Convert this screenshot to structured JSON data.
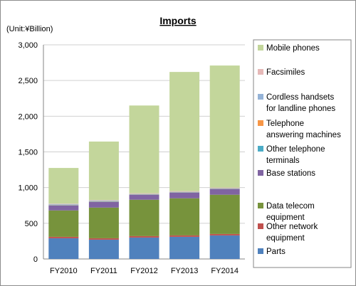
{
  "chart_data": {
    "type": "bar",
    "stacked": true,
    "title": "Imports",
    "unit_label": "(Unit:¥Billion)",
    "categories": [
      "FY2010",
      "FY2011",
      "FY2012",
      "FY2013",
      "FY2014"
    ],
    "ylim": [
      0,
      3000
    ],
    "yticks": [
      "0",
      "500",
      "1,000",
      "1,500",
      "2,000",
      "2,500",
      "3,000"
    ],
    "ytick_values": [
      0,
      500,
      1000,
      1500,
      2000,
      2500,
      3000
    ],
    "grid": true,
    "legend_position": "right",
    "series": [
      {
        "name": "Parts",
        "color": "#4f81bd",
        "values": [
          290,
          270,
          300,
          310,
          330
        ]
      },
      {
        "name": "Other network equipment",
        "color": "#c0504d",
        "values": [
          20,
          20,
          20,
          20,
          20
        ]
      },
      {
        "name": "Data telecom equipment",
        "color": "#77933c",
        "values": [
          370,
          430,
          510,
          520,
          550
        ]
      },
      {
        "name": "Base stations",
        "color": "#8064a2",
        "values": [
          70,
          80,
          70,
          80,
          80
        ]
      },
      {
        "name": "Other telephone terminals",
        "color": "#4bacc6",
        "values": [
          5,
          5,
          5,
          5,
          5
        ]
      },
      {
        "name": "Telephone answering machines",
        "color": "#f79646",
        "values": [
          5,
          5,
          5,
          5,
          5
        ]
      },
      {
        "name": "Cordless handsets for landline phones",
        "color": "#95b3d7",
        "values": [
          10,
          10,
          5,
          5,
          5
        ]
      },
      {
        "name": "Facsimiles",
        "color": "#e6b9b8",
        "values": [
          5,
          5,
          5,
          5,
          5
        ]
      },
      {
        "name": "Mobile phones",
        "color": "#c3d69b",
        "values": [
          500,
          820,
          1230,
          1670,
          1710
        ]
      }
    ],
    "legend_entries": [
      {
        "label_lines": [
          "Mobile phones"
        ],
        "color": "#c3d69b"
      },
      {
        "label_lines": [
          "Facsimiles"
        ],
        "color": "#e6b9b8"
      },
      {
        "label_lines": [
          "Cordless handsets",
          "for landline phones"
        ],
        "color": "#95b3d7"
      },
      {
        "label_lines": [
          "Telephone",
          "answering machines"
        ],
        "color": "#f79646"
      },
      {
        "label_lines": [
          "Other telephone",
          "terminals"
        ],
        "color": "#4bacc6"
      },
      {
        "label_lines": [
          "Base stations"
        ],
        "color": "#8064a2"
      },
      {
        "label_lines": [
          "Data telecom",
          "equipment"
        ],
        "color": "#77933c"
      },
      {
        "label_lines": [
          "Other network",
          "equipment"
        ],
        "color": "#c0504d"
      },
      {
        "label_lines": [
          "Parts"
        ],
        "color": "#4f81bd"
      }
    ]
  }
}
